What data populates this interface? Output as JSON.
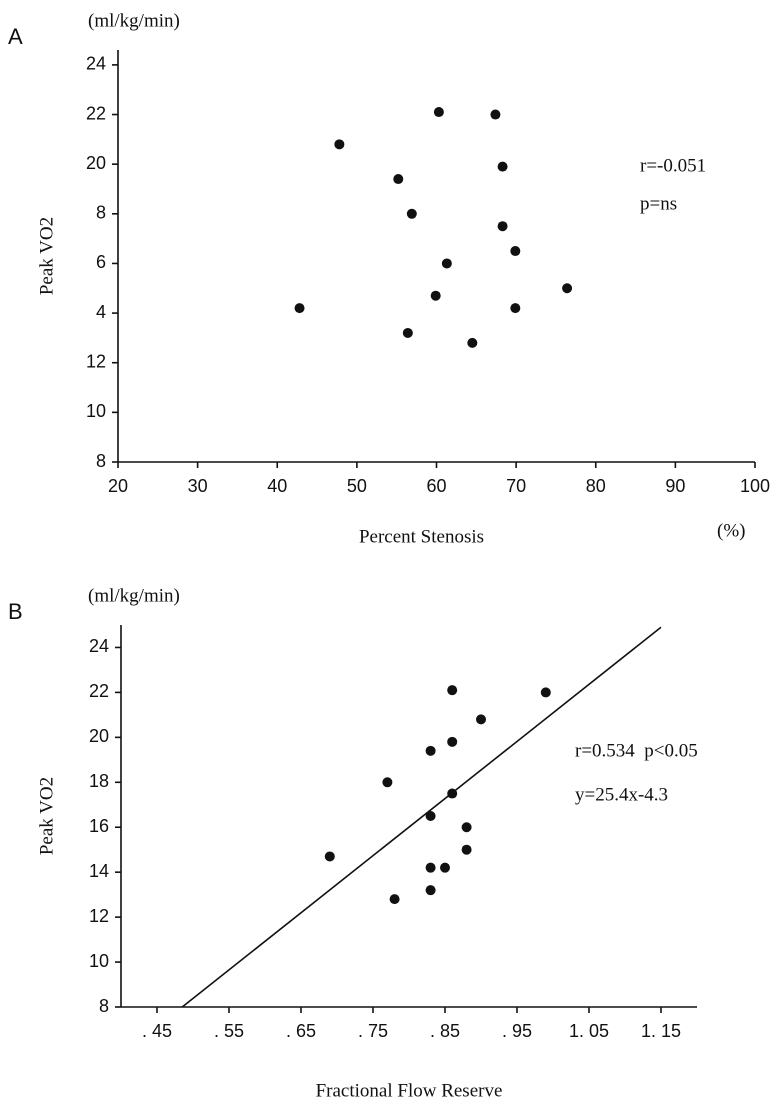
{
  "chart_data": [
    {
      "type": "scatter",
      "panel": "A",
      "y_unit": "(ml/kg/min)",
      "ylabel": "Peak VO2",
      "xlabel": "Percent Stenosis",
      "x_unit": "(%)",
      "annotations": [
        "r=-0.051",
        "p=ns"
      ],
      "color": "#111111",
      "x": [
        47.8,
        60.3,
        67.4,
        55.2,
        68.3,
        56.9,
        68.3,
        69.9,
        61.3,
        59.9,
        42.8,
        69.9,
        76.4,
        56.4,
        64.5
      ],
      "y": [
        20.8,
        22.1,
        22.0,
        19.4,
        19.9,
        18.0,
        17.5,
        16.5,
        16.0,
        14.7,
        14.2,
        14.2,
        15.0,
        13.2,
        12.8
      ],
      "xlim": [
        20,
        100
      ],
      "ylim": [
        8,
        24.6
      ],
      "xticks": [
        20,
        30,
        40,
        50,
        60,
        70,
        80,
        90,
        100
      ],
      "yticks": [
        8,
        10,
        12,
        {
          "value": 14,
          "label": "4"
        },
        {
          "value": 16,
          "label": "6"
        },
        {
          "value": 18,
          "label": "8"
        },
        20,
        22,
        24
      ]
    },
    {
      "type": "scatter",
      "panel": "B",
      "y_unit": "(ml/kg/min)",
      "ylabel": "Peak VO2",
      "xlabel": "Fractional Flow Reserve",
      "annotations": [
        "r=0.534  p<0.05",
        "y=25.4x-4.3"
      ],
      "color": "#111111",
      "x": [
        0.69,
        0.77,
        0.78,
        0.83,
        0.83,
        0.83,
        0.83,
        0.85,
        0.86,
        0.86,
        0.86,
        0.88,
        0.88,
        0.9,
        0.99
      ],
      "y": [
        14.7,
        18.0,
        12.8,
        19.4,
        16.5,
        14.2,
        13.2,
        14.2,
        22.1,
        19.8,
        17.5,
        16.0,
        15.0,
        20.8,
        22.0
      ],
      "trend_line": {
        "x": [
          0.485,
          1.15
        ],
        "y": [
          8,
          24.9
        ]
      },
      "xlim": [
        0.4,
        1.2
      ],
      "ylim": [
        8,
        25
      ],
      "xticks": [
        {
          "value": 0.45,
          "label": ". 45"
        },
        {
          "value": 0.55,
          "label": ". 55"
        },
        {
          "value": 0.65,
          "label": ". 65"
        },
        {
          "value": 0.75,
          "label": ". 75"
        },
        {
          "value": 0.85,
          "label": ". 85"
        },
        {
          "value": 0.95,
          "label": ". 95"
        },
        {
          "value": 1.05,
          "label": "1. 05"
        },
        {
          "value": 1.15,
          "label": "1. 15"
        }
      ],
      "yticks": [
        8,
        10,
        12,
        14,
        16,
        18,
        20,
        22,
        24
      ]
    }
  ]
}
